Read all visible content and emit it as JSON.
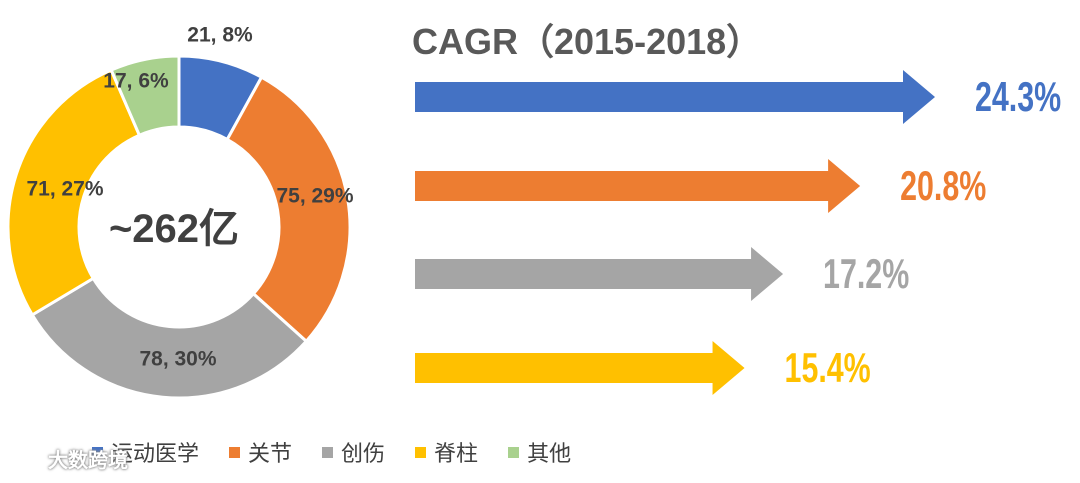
{
  "chart_data": [
    {
      "type": "pie",
      "center_label": "~262亿",
      "slices": [
        {
          "name": "运动医学",
          "value": 21,
          "percent": 8,
          "label": "21, 8%",
          "color": "#4472C4"
        },
        {
          "name": "关节",
          "value": 75,
          "percent": 29,
          "label": "75, 29%",
          "color": "#ED7D31"
        },
        {
          "name": "创伤",
          "value": 78,
          "percent": 30,
          "label": "78, 30%",
          "color": "#A5A5A5"
        },
        {
          "name": "脊柱",
          "value": 71,
          "percent": 27,
          "label": "71, 27%",
          "color": "#FFC000"
        },
        {
          "name": "其他",
          "value": 17,
          "percent": 6,
          "label": "17, 6%",
          "color": "#A9D18E"
        }
      ],
      "legend": [
        {
          "name": "运动医学",
          "color": "#4472C4"
        },
        {
          "name": "关节",
          "color": "#ED7D31"
        },
        {
          "name": "创伤",
          "color": "#A5A5A5"
        },
        {
          "name": "脊柱",
          "color": "#FFC000"
        },
        {
          "name": "其他",
          "color": "#A9D18E"
        }
      ],
      "legend_position": "bottom"
    },
    {
      "type": "bar",
      "orientation": "horizontal",
      "title": "CAGR（2015-2018）",
      "values": [
        24.3,
        20.8,
        17.2,
        15.4
      ],
      "labels": [
        "24.3%",
        "20.8%",
        "17.2%",
        "15.4%"
      ],
      "colors": [
        "#4472C4",
        "#ED7D31",
        "#A5A5A5",
        "#FFC000"
      ]
    }
  ],
  "watermark": {
    "text": "大数跨境",
    "icon": "brand-logo-icon"
  }
}
